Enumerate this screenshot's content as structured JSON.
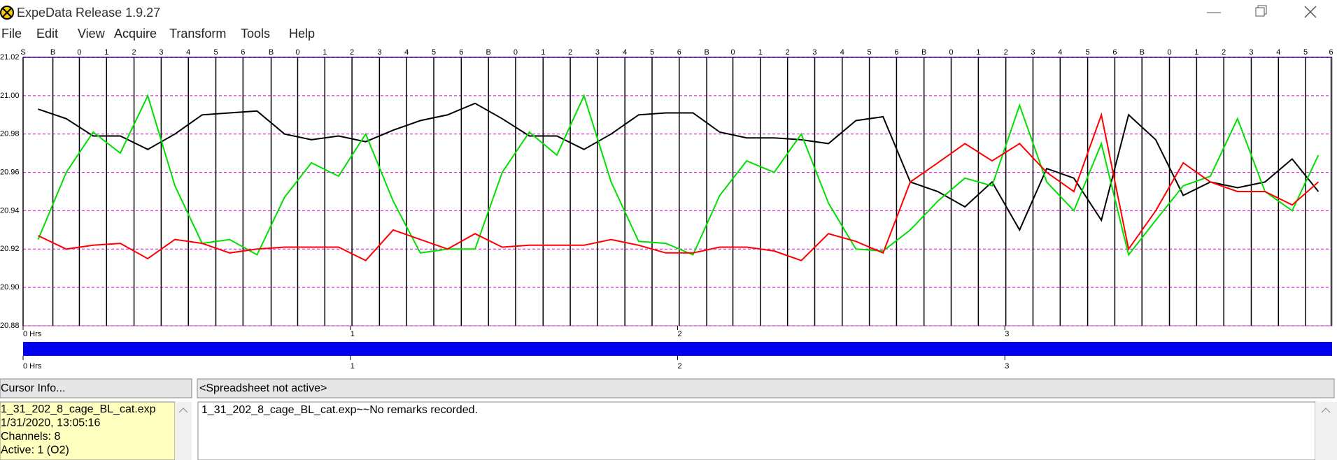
{
  "window": {
    "title": "ExpeData Release 1.9.27",
    "menu": [
      "File",
      "Edit",
      "View",
      "Acquire",
      "Transform",
      "Tools",
      "Help"
    ]
  },
  "chart_data": {
    "type": "line",
    "xlim": [
      0,
      4
    ],
    "ylim": [
      20.88,
      21.02
    ],
    "yticks": [
      21.02,
      {
        "value": 21,
        "label": "21.00"
      },
      20.98,
      20.96,
      20.94,
      20.92,
      {
        "value": 20.9,
        "label": "20.90"
      },
      20.88
    ],
    "xticks": [
      {
        "value": 0,
        "label": "0 Hrs"
      },
      1,
      2,
      3
    ],
    "grid": true,
    "markers": {
      "labels": [
        "S",
        "B",
        "0",
        "1",
        "2",
        "3",
        "4",
        "5",
        "6",
        "B",
        "0",
        "1",
        "2",
        "3",
        "4",
        "5",
        "6",
        "B",
        "0",
        "1",
        "2",
        "3",
        "4",
        "5",
        "6",
        "B",
        "0",
        "1",
        "2",
        "3",
        "4",
        "5",
        "6",
        "B",
        "0",
        "1",
        "2",
        "3",
        "4",
        "5",
        "6",
        "B",
        "0",
        "1",
        "2",
        "3",
        "4",
        "5",
        "6"
      ],
      "x": [
        0,
        0.091,
        0.172,
        0.255,
        0.339,
        0.422,
        0.505,
        0.589,
        0.672,
        0.758,
        0.839,
        0.922,
        1.005,
        1.089,
        1.172,
        1.255,
        1.339,
        1.422,
        1.505,
        1.589,
        1.672,
        1.755,
        1.839,
        1.922,
        2.005,
        2.089,
        2.169,
        2.253,
        2.336,
        2.419,
        2.503,
        2.586,
        2.669,
        2.753,
        2.836,
        2.919,
        3.003,
        3.086,
        3.169,
        3.253,
        3.336,
        3.419,
        3.503,
        3.586,
        3.669,
        3.753,
        3.836,
        3.919,
        3.997
      ]
    },
    "x": [
      0.046,
      0.132,
      0.214,
      0.297,
      0.381,
      0.464,
      0.547,
      0.631,
      0.715,
      0.799,
      0.881,
      0.964,
      1.047,
      1.131,
      1.214,
      1.297,
      1.381,
      1.464,
      1.547,
      1.631,
      1.714,
      1.797,
      1.881,
      1.964,
      2.047,
      2.129,
      2.211,
      2.295,
      2.378,
      2.461,
      2.545,
      2.628,
      2.711,
      2.795,
      2.878,
      2.961,
      3.045,
      3.128,
      3.211,
      3.295,
      3.378,
      3.461,
      3.545,
      3.628,
      3.711,
      3.795,
      3.878,
      3.958
    ],
    "series": [
      {
        "color": "#000000",
        "values": [
          20.993,
          20.988,
          20.979,
          20.979,
          20.972,
          20.98,
          20.99,
          20.991,
          20.992,
          20.98,
          20.977,
          20.979,
          20.976,
          20.982,
          20.987,
          20.99,
          20.996,
          20.988,
          20.979,
          20.979,
          20.972,
          20.98,
          20.99,
          20.991,
          20.991,
          20.981,
          20.978,
          20.978,
          20.977,
          20.975,
          20.987,
          20.989,
          20.955,
          20.95,
          20.942,
          20.955,
          20.93,
          20.962,
          20.957,
          20.935,
          20.99,
          20.977,
          20.948,
          20.955,
          20.952,
          20.955,
          20.967,
          20.95
        ]
      },
      {
        "color": "#00e000",
        "values": [
          20.925,
          20.96,
          20.981,
          20.97,
          21.0,
          20.953,
          20.923,
          20.925,
          20.917,
          20.947,
          20.965,
          20.958,
          20.98,
          20.945,
          20.918,
          20.92,
          20.92,
          20.96,
          20.981,
          20.969,
          21.0,
          20.955,
          20.924,
          20.923,
          20.917,
          20.948,
          20.966,
          20.96,
          20.98,
          20.944,
          20.92,
          20.919,
          20.93,
          20.945,
          20.957,
          20.953,
          20.995,
          20.955,
          20.94,
          20.975,
          20.917,
          20.935,
          20.953,
          20.958,
          20.988,
          20.95,
          20.94,
          20.969
        ]
      },
      {
        "color": "#ff0000",
        "values": [
          20.927,
          20.92,
          20.922,
          20.923,
          20.915,
          20.925,
          20.923,
          20.918,
          20.92,
          20.921,
          20.921,
          20.921,
          20.914,
          20.93,
          20.925,
          20.92,
          20.928,
          20.921,
          20.922,
          20.922,
          20.922,
          20.925,
          20.922,
          20.918,
          20.918,
          20.921,
          20.921,
          20.919,
          20.914,
          20.928,
          20.924,
          20.918,
          20.955,
          20.965,
          20.975,
          20.966,
          20.975,
          20.96,
          20.95,
          20.99,
          20.92,
          20.94,
          20.965,
          20.955,
          20.95,
          20.95,
          20.943,
          20.955
        ]
      }
    ]
  },
  "cursor_panel": {
    "header": "Cursor Info...",
    "lines": [
      "1_31_202_8_cage_BL_cat.exp",
      "1/31/2020, 13:05:16",
      "Channels: 8",
      "Active: 1 (O2)"
    ]
  },
  "remarks_panel": {
    "header": "<Spreadsheet not active>",
    "text": "1_31_202_8_cage_BL_cat.exp~~No remarks recorded."
  }
}
